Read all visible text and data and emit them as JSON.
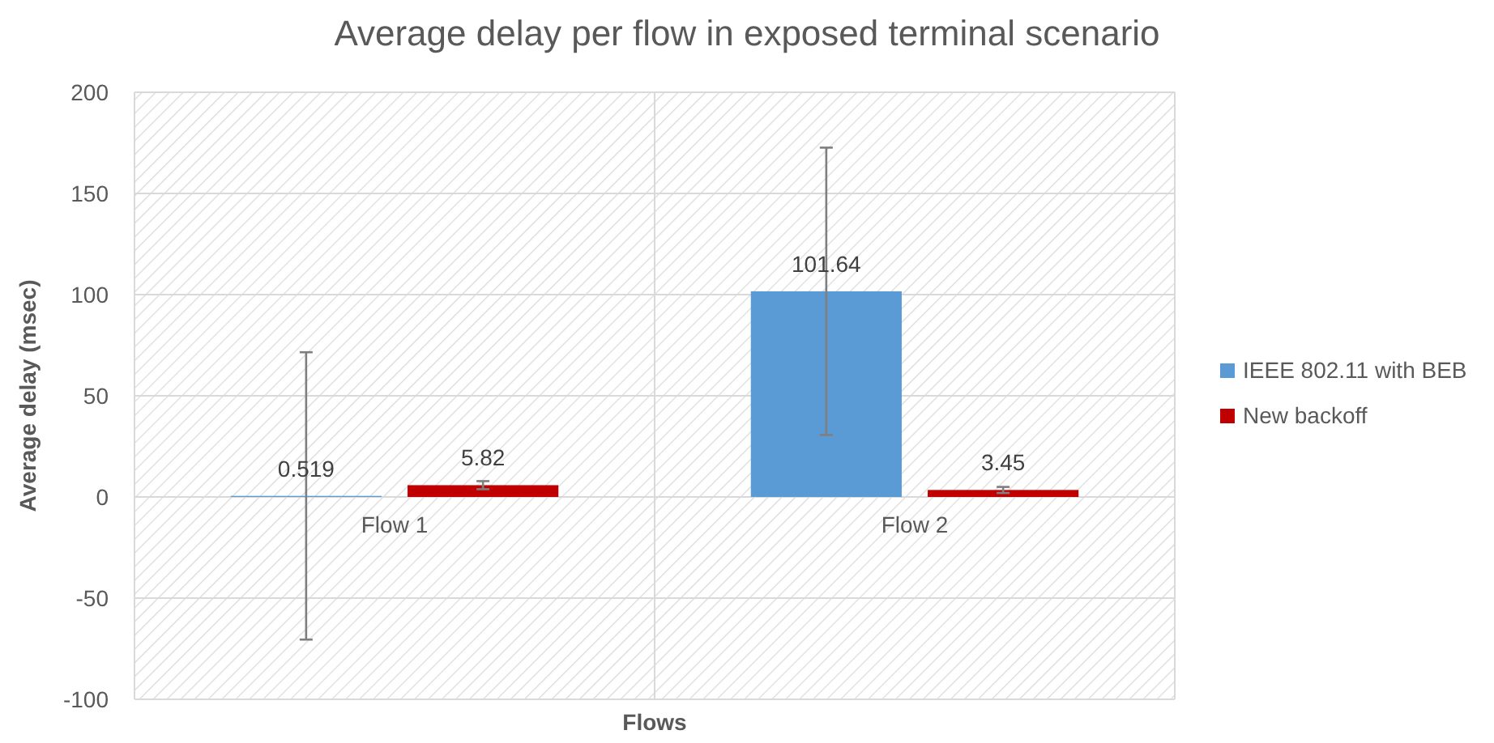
{
  "chart_data": {
    "type": "bar",
    "title": "Average delay per flow in exposed terminal scenario",
    "xlabel": "Flows",
    "ylabel": "Average delay (msec)",
    "categories": [
      "Flow 1",
      "Flow 2"
    ],
    "series": [
      {
        "name": "IEEE 802.11 with BEB",
        "color": "#5b9bd5",
        "values": [
          0.519,
          101.64
        ],
        "errors": [
          71,
          71
        ]
      },
      {
        "name": "New backoff",
        "color": "#c00000",
        "values": [
          5.82,
          3.45
        ],
        "errors": [
          2,
          1.5
        ]
      }
    ],
    "ylim": [
      -100,
      200
    ],
    "yticks": [
      -100,
      -50,
      0,
      50,
      100,
      150,
      200
    ],
    "grid": true,
    "legend": "right",
    "data_labels": true
  }
}
